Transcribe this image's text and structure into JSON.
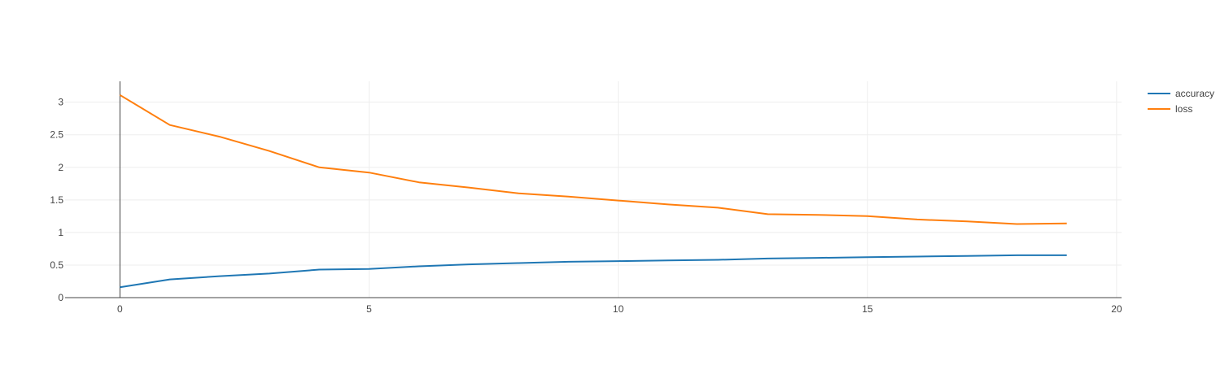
{
  "chart_data": {
    "type": "line",
    "title": "",
    "xlabel": "",
    "ylabel": "",
    "xlim": [
      -1.1,
      20.1
    ],
    "ylim": [
      0,
      3.32
    ],
    "x_ticks": [
      0,
      5,
      10,
      15,
      20
    ],
    "y_ticks": [
      0,
      0.5,
      1,
      1.5,
      2,
      2.5,
      3
    ],
    "x_tick_labels": [
      "0",
      "5",
      "10",
      "15",
      "20"
    ],
    "y_tick_labels": [
      "0",
      "0.5",
      "1",
      "1.5",
      "2",
      "2.5",
      "3"
    ],
    "grid": true,
    "legend_position": "top-right",
    "x": [
      0,
      1,
      2,
      3,
      4,
      5,
      6,
      7,
      8,
      9,
      10,
      11,
      12,
      13,
      14,
      15,
      16,
      17,
      18,
      19
    ],
    "series": [
      {
        "name": "accuracy",
        "color": "#1f77b4",
        "values": [
          0.16,
          0.28,
          0.33,
          0.37,
          0.43,
          0.44,
          0.48,
          0.51,
          0.53,
          0.55,
          0.56,
          0.57,
          0.58,
          0.6,
          0.61,
          0.62,
          0.63,
          0.64,
          0.65,
          0.65
        ]
      },
      {
        "name": "loss",
        "color": "#ff7f0e",
        "values": [
          3.11,
          2.65,
          2.47,
          2.25,
          2.0,
          1.92,
          1.77,
          1.69,
          1.6,
          1.55,
          1.49,
          1.43,
          1.38,
          1.28,
          1.27,
          1.25,
          1.2,
          1.17,
          1.13,
          1.14
        ]
      }
    ]
  }
}
